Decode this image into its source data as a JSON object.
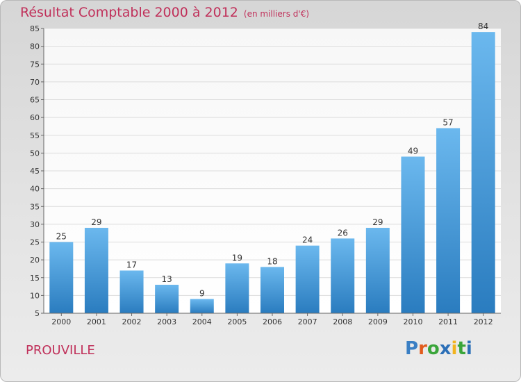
{
  "chart_data": {
    "type": "bar",
    "title": "Résultat Comptable 2000 à 2012",
    "subtitle": "(en milliers d'€)",
    "categories": [
      "2000",
      "2001",
      "2002",
      "2003",
      "2004",
      "2005",
      "2006",
      "2007",
      "2008",
      "2009",
      "2010",
      "2011",
      "2012"
    ],
    "values": [
      25,
      29,
      17,
      13,
      9,
      19,
      18,
      24,
      26,
      29,
      49,
      57,
      84
    ],
    "ylim": [
      5,
      85
    ],
    "yticks": [
      5,
      10,
      15,
      20,
      25,
      30,
      35,
      40,
      45,
      50,
      55,
      60,
      65,
      70,
      75,
      80,
      85
    ],
    "xlabel": "",
    "ylabel": "",
    "grid": true
  },
  "footer": {
    "town": "PROUVILLE",
    "logo_text": "Proxiti",
    "logo_colors": [
      "#3a7fc4",
      "#e25b1c",
      "#3aa53a",
      "#2c6fb7",
      "#f2b31e",
      "#3aa53a",
      "#2c6fb7"
    ]
  },
  "colors": {
    "bar_light": "#6bb5ea",
    "bar_dark": "#2d7dc0",
    "title": "#c0305a"
  }
}
